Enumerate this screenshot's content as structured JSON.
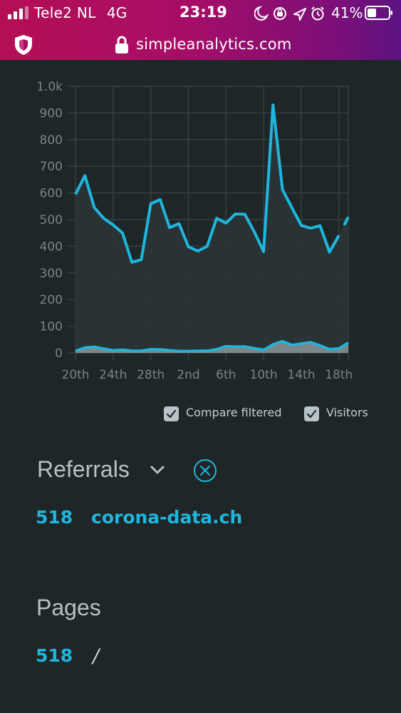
{
  "status_bar": {
    "carrier": "Tele2 NL",
    "network": "4G",
    "time": "23:19",
    "battery_percent": "41%",
    "icons": [
      "signal-icon",
      "moon-icon",
      "orientation-lock-icon",
      "location-icon",
      "alarm-icon",
      "battery-icon"
    ]
  },
  "browser": {
    "url": "simpleanalytics.com",
    "icons": [
      "shield-icon",
      "lock-icon"
    ]
  },
  "colors": {
    "accent": "#1fb6dd",
    "top_bar_start": "#b40f55",
    "top_bar_end": "#5b1380",
    "background": "#1f2628",
    "area_fill": "#2a3437",
    "visitors_fill": "#8b9699"
  },
  "chart_data": {
    "type": "line",
    "ylim": [
      0,
      1000
    ],
    "y_ticks": [
      "0",
      "100",
      "200",
      "300",
      "400",
      "500",
      "600",
      "700",
      "800",
      "900",
      "1.0k"
    ],
    "x_tick_labels": [
      "20th",
      "24th",
      "28th",
      "2nd",
      "6th",
      "10th",
      "14th",
      "18th"
    ],
    "grid": true,
    "series": [
      {
        "name": "Compare filtered",
        "values": [
          595,
          665,
          545,
          505,
          480,
          450,
          340,
          350,
          560,
          575,
          470,
          485,
          398,
          382,
          400,
          505,
          487,
          521,
          520,
          455,
          380,
          930,
          612,
          545,
          478,
          468,
          477,
          378,
          441,
          510
        ],
        "gap_before_index": 29
      },
      {
        "name": "Visitors",
        "values": [
          8,
          20,
          23,
          16,
          10,
          12,
          8,
          8,
          14,
          13,
          10,
          7,
          7,
          8,
          8,
          14,
          25,
          24,
          24,
          18,
          12,
          32,
          44,
          30,
          35,
          40,
          28,
          14,
          17,
          38
        ]
      }
    ]
  },
  "legend": {
    "compare_label": "Compare filtered",
    "visitors_label": "Visitors",
    "compare_checked": true,
    "visitors_checked": true
  },
  "referrals": {
    "title": "Referrals",
    "items": [
      {
        "count": "518",
        "name": "corona-data.ch"
      }
    ]
  },
  "pages": {
    "title": "Pages",
    "items": [
      {
        "count": "518",
        "path": "/"
      }
    ]
  }
}
